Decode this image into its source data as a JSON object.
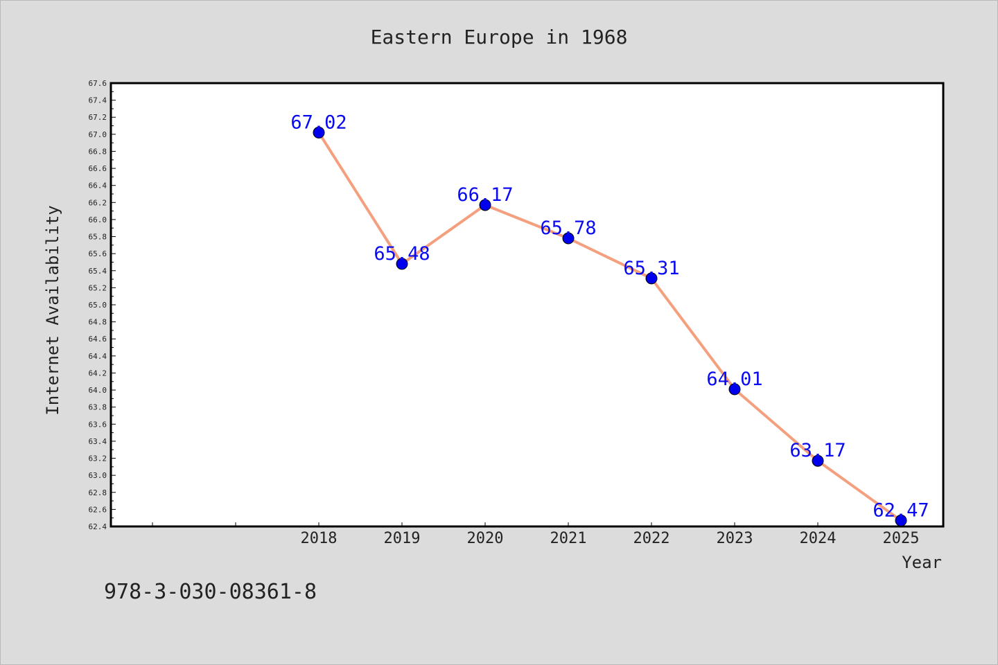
{
  "chart_data": {
    "type": "line",
    "title": "Eastern Europe in 1968",
    "xlabel": "Year",
    "ylabel": "Internet Availability",
    "x": [
      "2018",
      "2019",
      "2020",
      "2021",
      "2022",
      "2023",
      "2024",
      "2025"
    ],
    "series": [
      {
        "values": [
          67.02,
          65.48,
          66.17,
          65.78,
          65.31,
          64.01,
          63.17,
          62.47
        ],
        "labels": [
          "67.02",
          "65.48",
          "66.17",
          "65.78",
          "65.31",
          "64.01",
          "63.17",
          "62.47"
        ]
      }
    ],
    "ylim": [
      62.4,
      67.6
    ],
    "yticks": [
      "62.4",
      "62.6",
      "62.8",
      "63.0",
      "63.2",
      "63.4",
      "63.6",
      "63.8",
      "64.0",
      "64.2",
      "64.4",
      "64.6",
      "64.8",
      "65.0",
      "65.2",
      "65.4",
      "65.6",
      "65.8",
      "66.0",
      "66.2",
      "66.4",
      "66.6",
      "66.8",
      "67.0",
      "67.2",
      "67.4",
      "67.6"
    ],
    "grid": false,
    "legend": "none",
    "colors": {
      "line": "#f4a07f",
      "marker": "#0000ee",
      "label": "#0a0af0",
      "background": "#dcdcdc",
      "plot_bg": "#ffffff"
    }
  },
  "footer_text": "978-3-030-08361-8"
}
